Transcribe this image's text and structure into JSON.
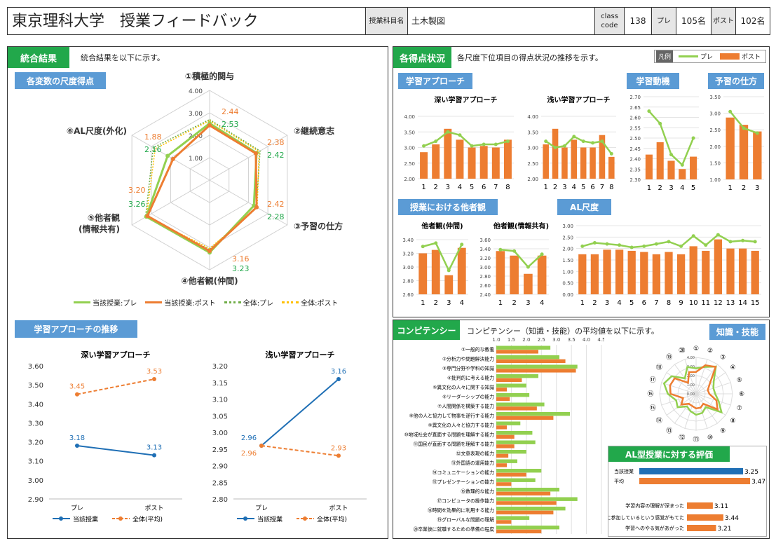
{
  "header": {
    "title": "東京理科大学　授業フィードバック",
    "course_label": "授業科目名",
    "course_name": "土木製図",
    "class_code_label": "class\ncode",
    "class_code": "138",
    "pre_label": "プレ",
    "pre_count": "105名",
    "post_label": "ポスト",
    "post_count": "102名"
  },
  "integrated": {
    "tag": "統合結果",
    "desc": "統合結果を以下に示す。",
    "radar_tag": "各変数の尺度得点",
    "trend_tag": "学習アプローチの推移"
  },
  "radar_main": {
    "type": "radar",
    "axes": [
      "①積極的関与",
      "②継続意志",
      "③予習の仕方",
      "④他者観(仲間)",
      "⑤他者観\n(情報共有)",
      "⑥AL尺度(外化)"
    ],
    "ticks": [
      "1.00",
      "2.00",
      "3.00",
      "4.00"
    ],
    "range": [
      0,
      4
    ],
    "series": [
      {
        "name": "当該授業:プレ",
        "values": [
          2.53,
          2.42,
          2.28,
          3.23,
          3.26,
          2.16
        ],
        "color": "#92d050"
      },
      {
        "name": "当該授業:ポスト",
        "values": [
          2.44,
          2.38,
          2.42,
          3.16,
          3.2,
          1.88
        ],
        "color": "#ed7d31"
      },
      {
        "name": "全体:プレ",
        "values": [
          2.7,
          2.6,
          2.4,
          3.1,
          3.3,
          2.9
        ],
        "color": "#70ad47"
      },
      {
        "name": "全体:ポスト",
        "values": [
          2.65,
          2.55,
          2.45,
          3.05,
          3.25,
          2.8
        ],
        "color": "#ffc000"
      }
    ],
    "labels_post": [
      "2.44",
      "2.38",
      "2.42",
      "3.16",
      "3.20",
      "1.88"
    ],
    "labels_pre": [
      "2.53",
      "2.42",
      "2.28",
      "3.23",
      "3.26",
      "2.16"
    ],
    "legend": [
      "当該授業:プレ",
      "当該授業:ポスト",
      "全体:プレ",
      "全体:ポスト"
    ]
  },
  "chart_data": [
    {
      "type": "line",
      "title": "深い学習アプローチ",
      "categories": [
        "プレ",
        "ポスト"
      ],
      "ylim": [
        2.9,
        3.6
      ],
      "ticks": [
        "2.90",
        "3.00",
        "3.10",
        "3.20",
        "3.30",
        "3.40",
        "3.50",
        "3.60"
      ],
      "series": [
        {
          "name": "当該授業",
          "values": [
            3.18,
            3.13
          ],
          "labels": [
            "3.18",
            "3.13"
          ]
        },
        {
          "name": "全体(平均)",
          "values": [
            3.45,
            3.53
          ],
          "labels": [
            "3.45",
            "3.53"
          ]
        }
      ]
    },
    {
      "type": "line",
      "title": "浅い学習アプローチ",
      "categories": [
        "プレ",
        "ポスト"
      ],
      "ylim": [
        2.8,
        3.2
      ],
      "ticks": [
        "2.80",
        "2.85",
        "2.90",
        "2.95",
        "3.00",
        "3.05",
        "3.10",
        "3.15",
        "3.20"
      ],
      "series": [
        {
          "name": "当該授業",
          "values": [
            2.96,
            3.16
          ],
          "labels": [
            "2.96",
            "3.16"
          ]
        },
        {
          "name": "全体(平均)",
          "values": [
            2.96,
            2.93
          ],
          "labels": [
            "2.96",
            "2.93"
          ]
        }
      ]
    },
    {
      "type": "bar",
      "title": "深い学習アプローチ",
      "categories": [
        "1",
        "2",
        "3",
        "4",
        "5",
        "6",
        "7",
        "8"
      ],
      "ylim": [
        2,
        4
      ],
      "ticks": [
        "2.00",
        "2.50",
        "3.00",
        "3.50",
        "4.00"
      ],
      "series": [
        {
          "name": "ポスト",
          "values": [
            2.85,
            3.1,
            3.6,
            3.25,
            3.0,
            3.05,
            3.0,
            3.25
          ]
        },
        {
          "name": "プレ",
          "values": [
            3.05,
            3.2,
            3.5,
            3.4,
            3.05,
            3.1,
            3.1,
            3.2
          ]
        }
      ]
    },
    {
      "type": "bar",
      "title": "浅い学習アプローチ",
      "categories": [
        "1",
        "2",
        "3",
        "4",
        "5",
        "6",
        "7",
        "8"
      ],
      "ylim": [
        2,
        4
      ],
      "ticks": [
        "2.00",
        "2.50",
        "3.00",
        "3.50",
        "4.00"
      ],
      "series": [
        {
          "name": "ポスト",
          "values": [
            3.1,
            3.6,
            3.0,
            3.25,
            3.0,
            3.0,
            3.4,
            2.7
          ]
        },
        {
          "name": "プレ",
          "values": [
            3.2,
            3.0,
            3.05,
            3.35,
            3.2,
            3.15,
            3.2,
            2.8
          ]
        }
      ]
    },
    {
      "type": "bar",
      "title": "学習動機",
      "categories": [
        "1",
        "2",
        "3",
        "4",
        "5"
      ],
      "ylim": [
        2.3,
        2.7
      ],
      "ticks": [
        "2.30",
        "2.35",
        "2.40",
        "2.45",
        "2.50",
        "2.55",
        "2.60",
        "2.65",
        "2.70"
      ],
      "series": [
        {
          "name": "ポスト",
          "values": [
            2.42,
            2.48,
            2.39,
            2.35,
            2.41
          ]
        },
        {
          "name": "プレ",
          "values": [
            2.63,
            2.57,
            2.42,
            2.37,
            2.5
          ]
        }
      ]
    },
    {
      "type": "bar",
      "title": "予習の仕方",
      "categories": [
        "1",
        "2",
        "3"
      ],
      "ylim": [
        1,
        3.5
      ],
      "ticks": [
        "1.00",
        "1.50",
        "2.00",
        "2.50",
        "3.00",
        "3.50"
      ],
      "series": [
        {
          "name": "ポスト",
          "values": [
            2.87,
            2.65,
            2.45
          ]
        },
        {
          "name": "プレ",
          "values": [
            3.05,
            2.55,
            2.4
          ]
        }
      ]
    },
    {
      "type": "bar",
      "title": "他者観(仲間)",
      "categories": [
        "1",
        "2",
        "3",
        "4"
      ],
      "ylim": [
        2.6,
        3.4
      ],
      "ticks": [
        "2.60",
        "2.80",
        "3.00",
        "3.20",
        "3.40"
      ],
      "series": [
        {
          "name": "ポスト",
          "values": [
            3.2,
            3.25,
            2.88,
            3.28
          ]
        },
        {
          "name": "プレ",
          "values": [
            3.3,
            3.35,
            2.95,
            3.33
          ]
        }
      ]
    },
    {
      "type": "bar",
      "title": "他者観(情報共有)",
      "categories": [
        "1",
        "2",
        "3",
        "4"
      ],
      "ylim": [
        2.4,
        3.6
      ],
      "ticks": [
        "2.40",
        "2.60",
        "2.80",
        "3.00",
        "3.20",
        "3.40",
        "3.60"
      ],
      "series": [
        {
          "name": "ポスト",
          "values": [
            3.35,
            3.25,
            2.85,
            3.25
          ]
        },
        {
          "name": "プレ",
          "values": [
            3.38,
            3.35,
            3.0,
            3.28
          ]
        }
      ]
    },
    {
      "type": "bar",
      "title": "AL尺度",
      "categories": [
        "1",
        "2",
        "3",
        "4",
        "5",
        "6",
        "7",
        "8",
        "9",
        "10",
        "11",
        "12",
        "13",
        "14",
        "15"
      ],
      "ylim": [
        0,
        3
      ],
      "ticks": [
        "0.00",
        "0.50",
        "1.00",
        "1.50",
        "2.00",
        "2.50",
        "3.00"
      ],
      "series": [
        {
          "name": "ポスト",
          "values": [
            1.75,
            1.75,
            1.95,
            1.95,
            1.9,
            1.85,
            1.75,
            1.85,
            1.75,
            2.1,
            1.9,
            2.4,
            2.0,
            2.0,
            1.9
          ]
        },
        {
          "name": "プレ",
          "values": [
            2.1,
            2.25,
            2.2,
            2.15,
            2.05,
            2.1,
            2.2,
            2.3,
            2.1,
            2.55,
            2.15,
            2.6,
            2.3,
            2.35,
            2.3
          ]
        }
      ]
    },
    {
      "type": "bar",
      "orientation": "horizontal",
      "title": "コンピテンシー",
      "xlim": [
        1,
        4.5
      ],
      "ticks": [
        "1.0",
        "1.5",
        "2.0",
        "2.5",
        "3.0",
        "3.5",
        "4.0",
        "4.5"
      ],
      "categories": [
        "①一般的な教養",
        "②分析力や問題解決能力",
        "③専門分野や学科の知識",
        "④批判的に考える能力",
        "⑤異文化の人々に関する知識",
        "⑥リーダーシップの能力",
        "⑦人間関係を構築する能力",
        "⑧他の人と協力して物事を遂行する能力",
        "⑨異文化の人々と協力する能力",
        "⑩地域社会が直面する問題を理解する能力",
        "⑪国民が直面する問題を理解する能力",
        "⑫文章表現の能力",
        "⑬外国語の運用能力",
        "⑭コミュニケーションの能力",
        "⑮プレゼンテーションの能力",
        "⑯数理的な能力",
        "⑰コンピュータの操作能力",
        "⑱時間を効果的に利用する能力",
        "⑲グローバルな問題の理解",
        "⑳卒業後に就職するための準備の程度"
      ],
      "series": [
        {
          "name": "プレ",
          "values": [
            2.8,
            3.1,
            3.7,
            2.4,
            2.0,
            2.1,
            2.6,
            3.45,
            1.8,
            2.2,
            2.3,
            2.0,
            1.7,
            2.5,
            2.3,
            3.1,
            3.7,
            3.3,
            2.1,
            3.1
          ]
        },
        {
          "name": "ポスト",
          "values": [
            2.4,
            3.3,
            3.65,
            1.85,
            1.35,
            1.45,
            2.35,
            2.9,
            1.35,
            1.6,
            1.6,
            1.4,
            1.35,
            2.0,
            1.5,
            2.8,
            3.0,
            2.9,
            1.5,
            2.5
          ]
        }
      ]
    },
    {
      "type": "radar",
      "title": "知識・技能",
      "axes": [
        "①",
        "②",
        "③",
        "④",
        "⑤",
        "⑥",
        "⑦",
        "⑧",
        "⑨",
        "⑩",
        "⑪",
        "⑫",
        "⑬",
        "⑭",
        "⑮",
        "⑯",
        "⑰",
        "⑱",
        "⑲",
        "⑳"
      ],
      "ticks": [
        "0.00",
        "1.00",
        "2.00",
        "3.00",
        "4.00"
      ],
      "range": [
        0,
        4
      ],
      "series": [
        {
          "name": "プレ",
          "values": [
            2.8,
            3.1,
            3.7,
            2.4,
            2.0,
            2.1,
            2.6,
            3.45,
            1.8,
            2.2,
            2.3,
            2.0,
            1.7,
            2.5,
            2.3,
            3.1,
            3.7,
            3.3,
            2.1,
            3.1
          ]
        },
        {
          "name": "ポスト",
          "values": [
            2.4,
            3.3,
            3.65,
            1.85,
            1.35,
            1.45,
            2.35,
            2.9,
            1.35,
            1.6,
            1.6,
            1.4,
            1.35,
            2.0,
            1.5,
            2.8,
            3.0,
            2.9,
            1.5,
            2.5
          ]
        }
      ]
    },
    {
      "type": "bar",
      "orientation": "horizontal",
      "title": "AL型授業に対する評価",
      "categories": [
        "当該授業",
        "平均",
        "学習内容の理解が深まった",
        "授業に参加しているという感覚がもてた",
        "学習へのやる気があがった"
      ],
      "values": [
        3.25,
        3.47,
        3.11,
        3.44,
        3.21
      ],
      "labels": [
        "3.25",
        "3.47",
        "3.11",
        "3.44",
        "3.21"
      ],
      "xlim": [
        0,
        3.6
      ]
    }
  ],
  "right": {
    "tag": "各得点状況",
    "desc": "各尺度下位項目の得点状況の推移を示す。",
    "legend_tag": "凡例",
    "legend_pre": "プレ",
    "legend_post": "ポスト",
    "t1": "学習アプローチ",
    "t2": "学習動機",
    "t3": "予習の仕方",
    "t4": "授業における他者観",
    "t5": "AL尺度"
  },
  "comp": {
    "tag": "コンピテンシー",
    "desc": "コンピテンシー（知識・技能）の平均値を以下に示す。",
    "radar_tag": "知識・技能",
    "al_tag": "AL型授業に対する評価"
  },
  "colors": {
    "green": "#22a84b",
    "blue_tag": "#5b9bd5",
    "pre": "#92d050",
    "post": "#ed7d31",
    "class": "#1f6fb5",
    "avg": "#ed7d31",
    "gold": "#ffc000"
  },
  "trend_legend": {
    "a": "当該授業",
    "b": "全体(平均)"
  }
}
